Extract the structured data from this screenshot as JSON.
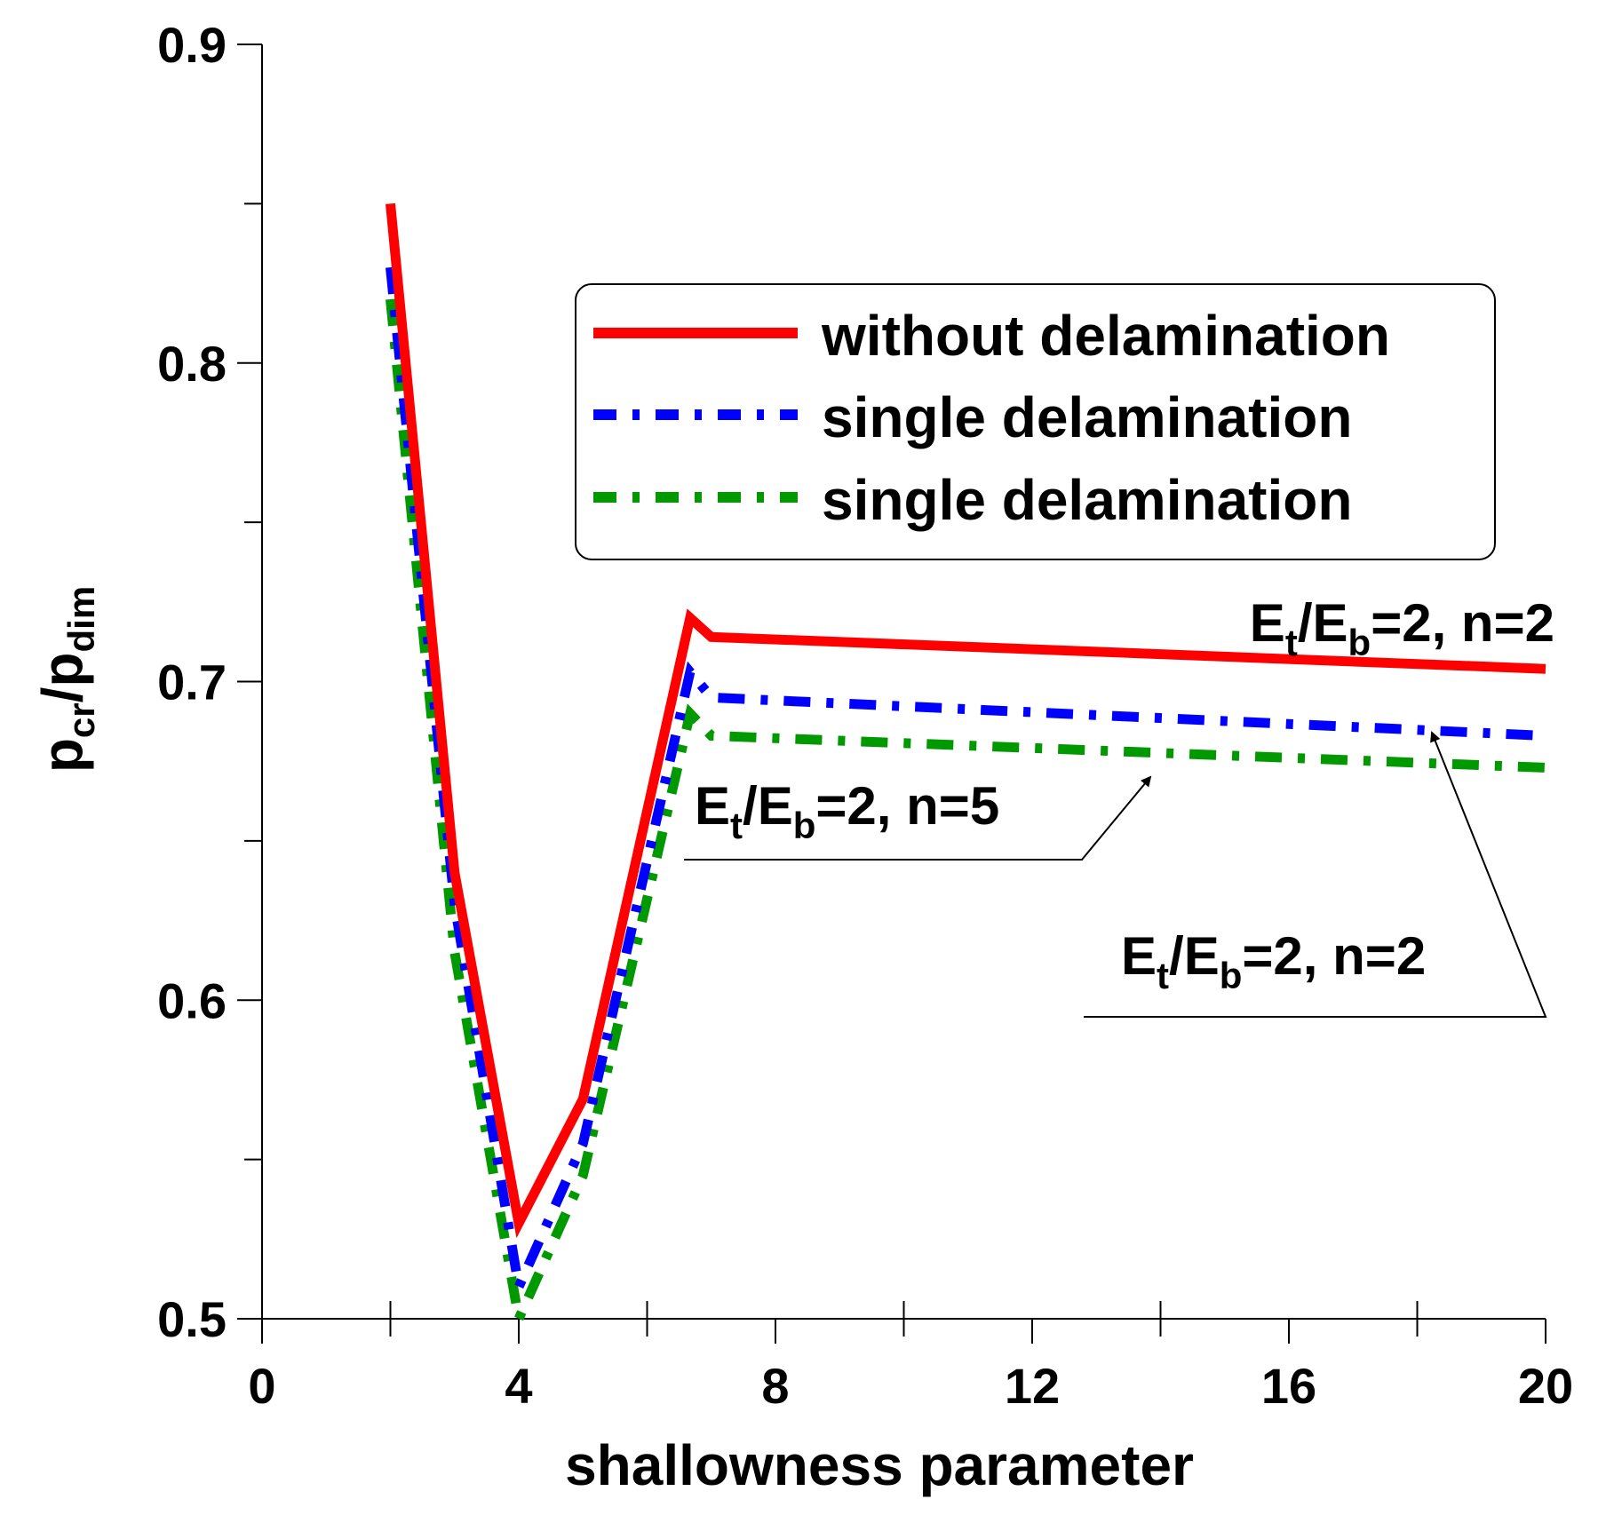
{
  "chart_data": {
    "type": "line",
    "title": "",
    "xlabel": "shallowness parameter",
    "ylabel": {
      "base1": "p",
      "sub1": "cr",
      "sep": "/p",
      "sub2": "dim"
    },
    "xlim": [
      0,
      20
    ],
    "ylim": [
      0.5,
      0.9
    ],
    "xticks": [
      0,
      4,
      8,
      12,
      16,
      20
    ],
    "yticks": [
      0.5,
      0.6,
      0.7,
      0.8,
      0.9
    ],
    "xminor": [
      2,
      6,
      10,
      14,
      18
    ],
    "yminor": [
      0.55,
      0.65,
      0.75,
      0.85
    ],
    "grid": false,
    "legend_position": "top-right",
    "series": [
      {
        "name": "without delamination",
        "color": "#ff0000",
        "style": "solid",
        "x": [
          2,
          3,
          4,
          5,
          6.67,
          7,
          20
        ],
        "y": [
          0.85,
          0.64,
          0.53,
          0.569,
          0.72,
          0.714,
          0.704
        ]
      },
      {
        "name": "single delamination",
        "color": "#0000ff",
        "style": "dashdot",
        "x": [
          2,
          3,
          4,
          5,
          6.67,
          7,
          20
        ],
        "y": [
          0.83,
          0.63,
          0.51,
          0.555,
          0.703,
          0.695,
          0.683
        ]
      },
      {
        "name": "single delamination",
        "color": "#009900",
        "style": "dashdot",
        "x": [
          2,
          3,
          4,
          5,
          6.67,
          7,
          20
        ],
        "y": [
          0.82,
          0.615,
          0.5,
          0.545,
          0.69,
          0.683,
          0.673
        ]
      }
    ],
    "annotations": [
      {
        "id": "anno-top",
        "base1": "E",
        "sub1": "t",
        "mid": "/E",
        "sub2": "b",
        "tail": "=2, n=2"
      },
      {
        "id": "anno-mid",
        "base1": "E",
        "sub1": "t",
        "mid": "/E",
        "sub2": "b",
        "tail": "=2, n=5"
      },
      {
        "id": "anno-low",
        "base1": "E",
        "sub1": "t",
        "mid": "/E",
        "sub2": "b",
        "tail": "=2, n=2"
      }
    ]
  }
}
